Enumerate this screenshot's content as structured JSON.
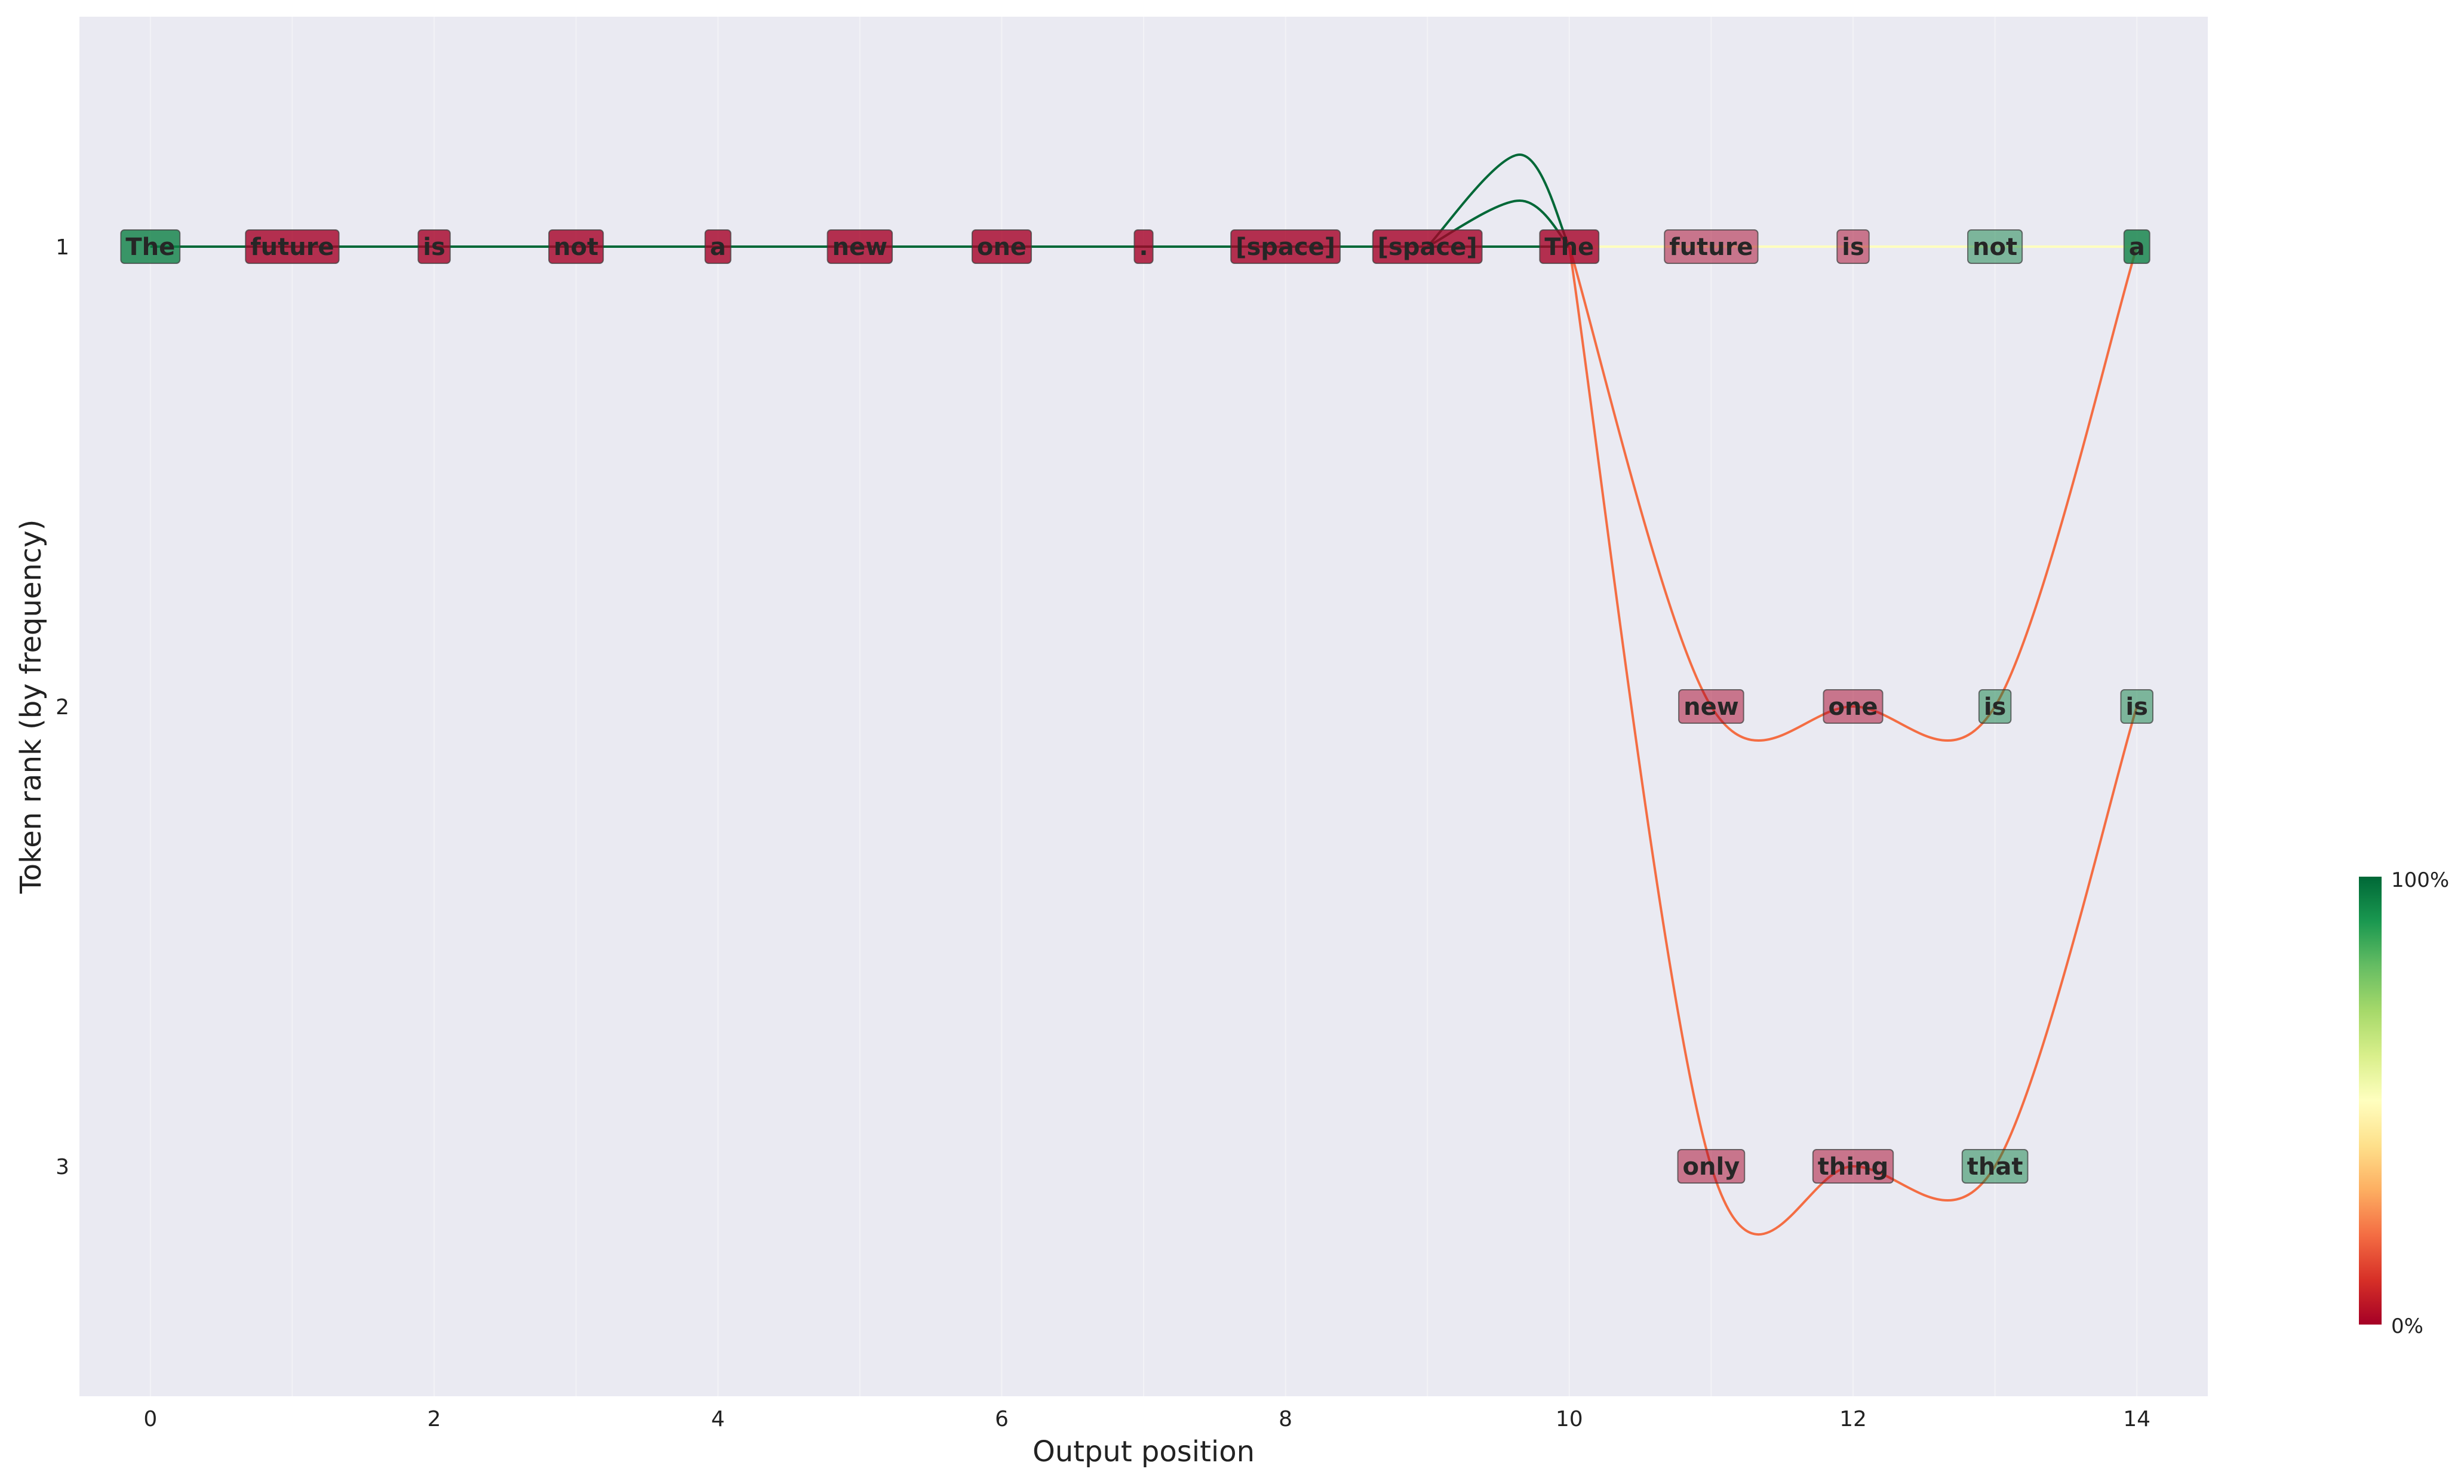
{
  "chart_data": {
    "type": "line",
    "title": "",
    "xlabel": "Output position",
    "ylabel": "Token rank (by frequency)",
    "xlim": [
      -0.5,
      14.5
    ],
    "ylim": [
      3.5,
      0.5
    ],
    "y_axis_inverted": true,
    "grid": true,
    "x_ticks": [
      0,
      2,
      4,
      6,
      8,
      10,
      12,
      14
    ],
    "x_tick_labels": [
      "0",
      "2",
      "4",
      "6",
      "8",
      "10",
      "12",
      "14"
    ],
    "y_ticks": [
      1,
      2,
      3
    ],
    "y_tick_labels": [
      "1",
      "2",
      "3"
    ],
    "colormap": "RdYlGn",
    "colorbar": {
      "min_label": "0%",
      "max_label": "100%"
    },
    "tokens": [
      {
        "x": 0,
        "rank": 1,
        "text": "The",
        "score": 0.95,
        "opacity": 0.8
      },
      {
        "x": 1,
        "rank": 1,
        "text": "future",
        "score": 0.0,
        "opacity": 0.8
      },
      {
        "x": 2,
        "rank": 1,
        "text": "is",
        "score": 0.0,
        "opacity": 0.8
      },
      {
        "x": 3,
        "rank": 1,
        "text": "not",
        "score": 0.0,
        "opacity": 0.8
      },
      {
        "x": 4,
        "rank": 1,
        "text": "a",
        "score": 0.0,
        "opacity": 0.8
      },
      {
        "x": 5,
        "rank": 1,
        "text": "new",
        "score": 0.0,
        "opacity": 0.8
      },
      {
        "x": 6,
        "rank": 1,
        "text": "one",
        "score": 0.0,
        "opacity": 0.8
      },
      {
        "x": 7,
        "rank": 1,
        "text": ".",
        "score": 0.0,
        "opacity": 0.8
      },
      {
        "x": 8,
        "rank": 1,
        "text": "[space]",
        "score": 0.0,
        "opacity": 0.8
      },
      {
        "x": 9,
        "rank": 1,
        "text": "[space]",
        "score": 0.0,
        "opacity": 0.8
      },
      {
        "x": 10,
        "rank": 1,
        "text": "The",
        "score": 0.0,
        "opacity": 0.8
      },
      {
        "x": 11,
        "rank": 1,
        "text": "future",
        "score": 0.0,
        "opacity": 0.5
      },
      {
        "x": 12,
        "rank": 1,
        "text": "is",
        "score": 0.0,
        "opacity": 0.5
      },
      {
        "x": 13,
        "rank": 1,
        "text": "not",
        "score": 0.95,
        "opacity": 0.5
      },
      {
        "x": 14,
        "rank": 1,
        "text": "a",
        "score": 0.95,
        "opacity": 0.8
      },
      {
        "x": 11,
        "rank": 2,
        "text": "new",
        "score": 0.0,
        "opacity": 0.5
      },
      {
        "x": 12,
        "rank": 2,
        "text": "one",
        "score": 0.0,
        "opacity": 0.5
      },
      {
        "x": 13,
        "rank": 2,
        "text": "is",
        "score": 0.95,
        "opacity": 0.5
      },
      {
        "x": 14,
        "rank": 2,
        "text": "is",
        "score": 0.95,
        "opacity": 0.5
      },
      {
        "x": 11,
        "rank": 3,
        "text": "only",
        "score": 0.0,
        "opacity": 0.5
      },
      {
        "x": 12,
        "rank": 3,
        "text": "thing",
        "score": 0.0,
        "opacity": 0.5
      },
      {
        "x": 13,
        "rank": 3,
        "text": "that",
        "score": 0.95,
        "opacity": 0.5
      }
    ],
    "paths": [
      {
        "points": [
          [
            0,
            1
          ],
          [
            1,
            1
          ],
          [
            2,
            1
          ],
          [
            3,
            1
          ],
          [
            4,
            1
          ],
          [
            5,
            1
          ],
          [
            6,
            1
          ],
          [
            7,
            1
          ],
          [
            8,
            1
          ],
          [
            9,
            1
          ],
          [
            10,
            1
          ]
        ],
        "color": "#006837"
      },
      {
        "points": [
          [
            8,
            1
          ],
          [
            9,
            1.0
          ]
        ],
        "color": "#006837"
      },
      {
        "points": [
          [
            9,
            1
          ],
          [
            9.65,
            0.8
          ],
          [
            10,
            1
          ]
        ],
        "color": "#006837"
      },
      {
        "points": [
          [
            9,
            1
          ],
          [
            9.65,
            0.9
          ],
          [
            10,
            1
          ]
        ],
        "color": "#006837"
      },
      {
        "points": [
          [
            10,
            1
          ],
          [
            11,
            1
          ],
          [
            12,
            1
          ],
          [
            13,
            1
          ],
          [
            14,
            1
          ]
        ],
        "color": "#ffffbf"
      },
      {
        "points": [
          [
            10,
            1
          ],
          [
            11,
            2
          ],
          [
            12,
            2
          ],
          [
            13,
            2
          ],
          [
            14,
            1
          ]
        ],
        "color": "#f46d43"
      },
      {
        "points": [
          [
            10,
            1
          ],
          [
            11,
            3
          ],
          [
            12,
            3
          ],
          [
            13,
            3
          ],
          [
            14,
            2
          ]
        ],
        "color": "#f46d43"
      }
    ]
  }
}
